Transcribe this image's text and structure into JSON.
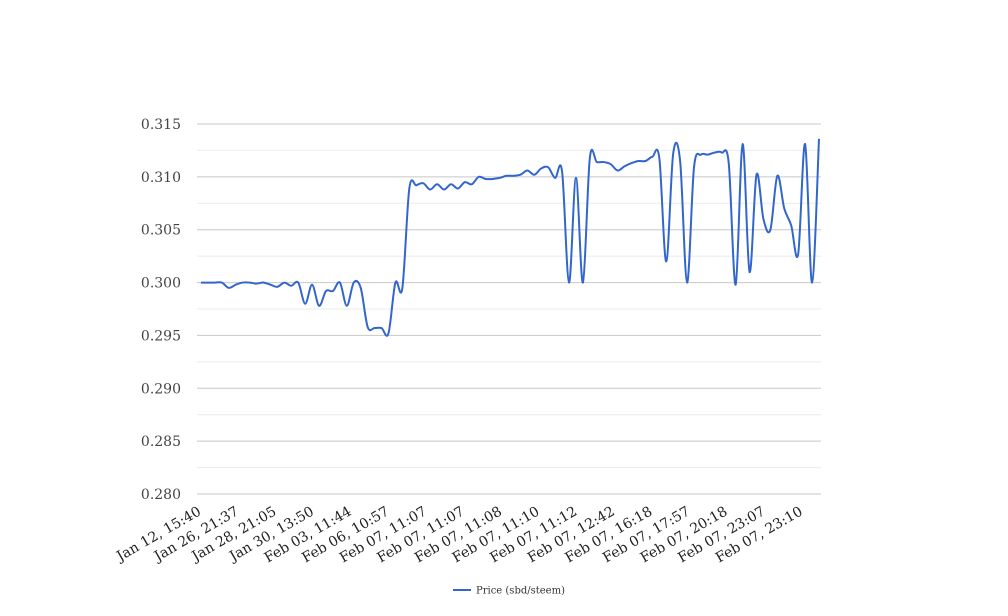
{
  "chart_data": {
    "type": "line",
    "title": "",
    "xlabel": "",
    "ylabel": "",
    "ylim": [
      0.28,
      0.315
    ],
    "y_ticks": [
      "0.280",
      "0.285",
      "0.290",
      "0.295",
      "0.300",
      "0.305",
      "0.310",
      "0.315"
    ],
    "x_tick_labels": [
      "Jan 12, 15:40",
      "Jan 26, 21:37",
      "Jan 28, 21:05",
      "Jan 30, 13:50",
      "Feb 03, 11:44",
      "Feb 06, 10:57",
      "Feb 07, 11:07",
      "Feb 07, 11:07",
      "Feb 07, 11:08",
      "Feb 07, 11:10",
      "Feb 07, 11:12",
      "Feb 07, 12:42",
      "Feb 07, 16:18",
      "Feb 07, 17:57",
      "Feb 07, 20:18",
      "Feb 07, 23:07",
      "Feb 07, 23:10"
    ],
    "grid": true,
    "legend_position": "bottom",
    "series": [
      {
        "name": "Price (sbd/steem)",
        "color": "#3366cc",
        "values": [
          0.3,
          0.3,
          0.3,
          0.3,
          0.2995,
          0.2998,
          0.3,
          0.3,
          0.2999,
          0.3,
          0.2998,
          0.2996,
          0.3,
          0.2997,
          0.3,
          0.298,
          0.2998,
          0.2978,
          0.2992,
          0.2992,
          0.3,
          0.2978,
          0.3,
          0.2995,
          0.2958,
          0.2957,
          0.2957,
          0.2952,
          0.3,
          0.2995,
          0.3089,
          0.3092,
          0.3094,
          0.3088,
          0.3093,
          0.3088,
          0.3093,
          0.3089,
          0.3095,
          0.3093,
          0.31,
          0.3098,
          0.3098,
          0.3099,
          0.3101,
          0.3101,
          0.3102,
          0.3106,
          0.3102,
          0.3108,
          0.3109,
          0.3099,
          0.3105,
          0.3,
          0.3099,
          0.3,
          0.3118,
          0.3114,
          0.3114,
          0.3112,
          0.3106,
          0.311,
          0.3113,
          0.3115,
          0.3115,
          0.3119,
          0.3118,
          0.302,
          0.3122,
          0.3115,
          0.3,
          0.3109,
          0.3121,
          0.3121,
          0.3123,
          0.3123,
          0.3113,
          0.2998,
          0.3131,
          0.301,
          0.3102,
          0.306,
          0.305,
          0.3101,
          0.307,
          0.3054,
          0.3027,
          0.3131,
          0.3,
          0.3136
        ]
      }
    ]
  }
}
